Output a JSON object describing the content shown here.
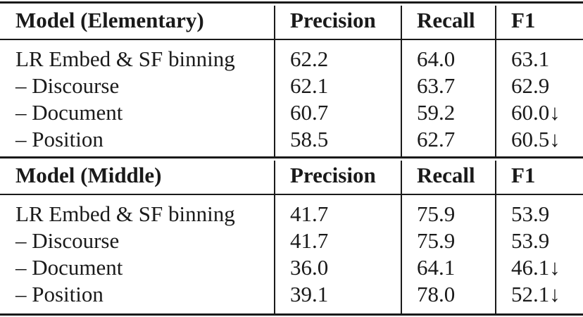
{
  "sections": [
    {
      "header": {
        "model": "Model (Elementary)",
        "precision": "Precision",
        "recall": "Recall",
        "f1": "F1"
      },
      "rows": [
        {
          "model": "LR Embed & SF binning",
          "precision": "62.2",
          "recall": "64.0",
          "f1": "63.1"
        },
        {
          "model": "– Discourse",
          "precision": "62.1",
          "recall": "63.7",
          "f1": "62.9"
        },
        {
          "model": "– Document",
          "precision": "60.7",
          "recall": "59.2",
          "f1": "60.0↓"
        },
        {
          "model": "– Position",
          "precision": "58.5",
          "recall": "62.7",
          "f1": "60.5↓"
        }
      ]
    },
    {
      "header": {
        "model": "Model (Middle)",
        "precision": "Precision",
        "recall": "Recall",
        "f1": "F1"
      },
      "rows": [
        {
          "model": "LR Embed & SF binning",
          "precision": "41.7",
          "recall": "75.9",
          "f1": "53.9"
        },
        {
          "model": "– Discourse",
          "precision": "41.7",
          "recall": "75.9",
          "f1": "53.9"
        },
        {
          "model": "– Document",
          "precision": "36.0",
          "recall": "64.1",
          "f1": "46.1↓"
        },
        {
          "model": "– Position",
          "precision": "39.1",
          "recall": "78.0",
          "f1": "52.1↓"
        }
      ]
    }
  ]
}
